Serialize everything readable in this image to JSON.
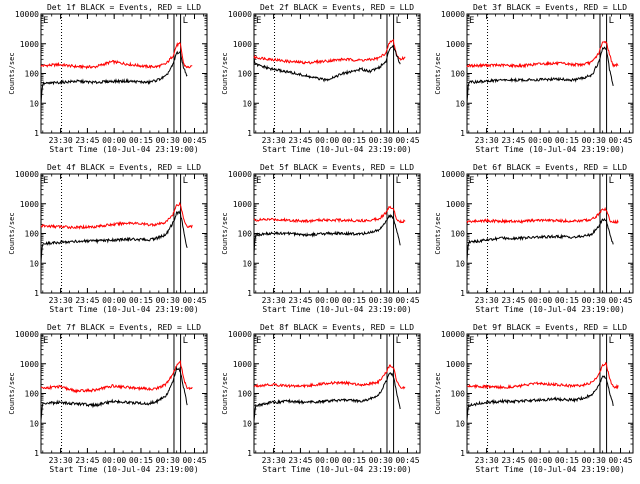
{
  "figure": {
    "xlabel": "Start Time (10-Jul-04 23:19:00)",
    "ylabel": "Counts/sec",
    "x_ticks": [
      "23:30",
      "23:45",
      "00:00",
      "00:15",
      "00:30",
      "00:45"
    ],
    "y_ticks": [
      "1",
      "10",
      "100",
      "1000",
      "10000"
    ],
    "colors": {
      "events": "#000000",
      "lld": "#ff0000",
      "axes": "#000000"
    }
  },
  "chart_data": [
    {
      "type": "line",
      "title": "Det 1f BLACK = Events, RED = LLD",
      "x_unit": "minutes after 23:19",
      "xlim": [
        0,
        93
      ],
      "ylim": [
        1,
        10000
      ],
      "y_scale": "log",
      "dotted_x": [
        11.5
      ],
      "vlines": [
        74.5,
        78.2
      ],
      "corner_marks": [
        "E",
        "L"
      ],
      "series": [
        {
          "color": "#ff0000",
          "x": [
            0,
            10,
            20,
            30,
            40,
            50,
            60,
            65,
            70,
            74,
            76,
            78,
            80,
            82,
            85
          ],
          "y": [
            180,
            200,
            170,
            165,
            250,
            200,
            170,
            170,
            210,
            400,
            900,
            1000,
            200,
            160,
            170
          ]
        },
        {
          "color": "#000000",
          "x": [
            0,
            0.6,
            1,
            10,
            20,
            30,
            40,
            50,
            60,
            65,
            70,
            74,
            76,
            78,
            80,
            82
          ],
          "y": [
            9,
            30,
            45,
            50,
            55,
            50,
            55,
            55,
            50,
            60,
            80,
            200,
            500,
            500,
            150,
            80
          ]
        }
      ]
    },
    {
      "type": "line",
      "title": "Det 2f BLACK = Events, RED = LLD",
      "x_unit": "minutes after 23:19",
      "xlim": [
        0,
        93
      ],
      "ylim": [
        1,
        10000
      ],
      "y_scale": "log",
      "dotted_x": [
        11.5
      ],
      "vlines": [
        74.5,
        78.2
      ],
      "corner_marks": [
        "E",
        "L"
      ],
      "series": [
        {
          "color": "#ff0000",
          "x": [
            0,
            10,
            20,
            30,
            40,
            50,
            60,
            65,
            70,
            74,
            76,
            78,
            80,
            82,
            85
          ],
          "y": [
            350,
            300,
            250,
            230,
            260,
            300,
            280,
            290,
            330,
            500,
            1100,
            1300,
            400,
            300,
            350
          ]
        },
        {
          "color": "#000000",
          "x": [
            0,
            1,
            10,
            20,
            30,
            40,
            50,
            60,
            65,
            70,
            74,
            76,
            78,
            80,
            82
          ],
          "y": [
            300,
            200,
            140,
            110,
            80,
            60,
            100,
            140,
            120,
            160,
            250,
            700,
            900,
            400,
            200
          ]
        }
      ]
    },
    {
      "type": "line",
      "title": "Det 3f BLACK = Events, RED = LLD",
      "x_unit": "minutes after 23:19",
      "xlim": [
        0,
        93
      ],
      "ylim": [
        1,
        10000
      ],
      "y_scale": "log",
      "dotted_x": [
        11.5
      ],
      "vlines": [
        74.5,
        78.2
      ],
      "corner_marks": [
        "E",
        "L"
      ],
      "series": [
        {
          "color": "#ff0000",
          "x": [
            0,
            10,
            20,
            30,
            40,
            50,
            60,
            65,
            70,
            74,
            76,
            78,
            80,
            82,
            85
          ],
          "y": [
            180,
            190,
            190,
            180,
            210,
            220,
            200,
            200,
            240,
            500,
            1100,
            1200,
            400,
            180,
            200
          ]
        },
        {
          "color": "#000000",
          "x": [
            0,
            0.6,
            1,
            10,
            20,
            30,
            40,
            50,
            60,
            65,
            70,
            74,
            76,
            78,
            80,
            82
          ],
          "y": [
            10,
            35,
            50,
            55,
            60,
            60,
            62,
            65,
            60,
            70,
            90,
            250,
            700,
            700,
            120,
            40
          ]
        }
      ]
    },
    {
      "type": "line",
      "title": "Det 4f BLACK = Events, RED = LLD",
      "x_unit": "minutes after 23:19",
      "xlim": [
        0,
        93
      ],
      "ylim": [
        1,
        10000
      ],
      "y_scale": "log",
      "dotted_x": [
        11.5
      ],
      "vlines": [
        74.5,
        78.2
      ],
      "corner_marks": [
        "E",
        "L"
      ],
      "series": [
        {
          "color": "#ff0000",
          "x": [
            0,
            10,
            20,
            30,
            40,
            50,
            60,
            65,
            70,
            74,
            76,
            78,
            80,
            82,
            85
          ],
          "y": [
            180,
            170,
            160,
            170,
            200,
            230,
            200,
            200,
            240,
            450,
            900,
            1000,
            300,
            170,
            180
          ]
        },
        {
          "color": "#000000",
          "x": [
            0,
            0.6,
            1,
            10,
            20,
            30,
            40,
            50,
            60,
            65,
            70,
            74,
            76,
            78,
            80,
            82
          ],
          "y": [
            10,
            35,
            45,
            50,
            55,
            55,
            60,
            65,
            60,
            70,
            90,
            230,
            500,
            500,
            120,
            30
          ]
        }
      ]
    },
    {
      "type": "line",
      "title": "Det 5f BLACK = Events, RED = LLD",
      "x_unit": "minutes after 23:19",
      "xlim": [
        0,
        93
      ],
      "ylim": [
        1,
        10000
      ],
      "y_scale": "log",
      "dotted_x": [
        11.5
      ],
      "vlines": [
        74.5,
        78.2
      ],
      "corner_marks": [
        "E",
        "L"
      ],
      "series": [
        {
          "color": "#ff0000",
          "x": [
            0,
            10,
            20,
            30,
            40,
            50,
            60,
            65,
            70,
            74,
            76,
            78,
            80,
            82,
            85
          ],
          "y": [
            280,
            300,
            280,
            260,
            290,
            280,
            270,
            280,
            320,
            500,
            800,
            700,
            300,
            250,
            260
          ]
        },
        {
          "color": "#000000",
          "x": [
            0,
            0.6,
            1,
            10,
            20,
            30,
            40,
            50,
            60,
            65,
            70,
            74,
            76,
            78,
            80,
            82
          ],
          "y": [
            20,
            70,
            90,
            100,
            100,
            90,
            100,
            100,
            95,
            110,
            130,
            250,
            400,
            350,
            120,
            40
          ]
        }
      ]
    },
    {
      "type": "line",
      "title": "Det 6f BLACK = Events, RED = LLD",
      "x_unit": "minutes after 23:19",
      "xlim": [
        0,
        93
      ],
      "ylim": [
        1,
        10000
      ],
      "y_scale": "log",
      "dotted_x": [
        11.5
      ],
      "vlines": [
        74.5,
        78.2
      ],
      "corner_marks": [
        "E",
        "L"
      ],
      "series": [
        {
          "color": "#ff0000",
          "x": [
            0,
            10,
            20,
            30,
            40,
            50,
            60,
            65,
            70,
            74,
            76,
            78,
            80,
            82,
            85
          ],
          "y": [
            250,
            270,
            260,
            250,
            280,
            270,
            260,
            270,
            300,
            450,
            700,
            600,
            280,
            240,
            250
          ]
        },
        {
          "color": "#000000",
          "x": [
            0,
            0.6,
            1,
            10,
            20,
            30,
            40,
            50,
            60,
            65,
            70,
            74,
            76,
            78,
            80,
            82
          ],
          "y": [
            12,
            40,
            50,
            60,
            70,
            70,
            75,
            80,
            75,
            80,
            95,
            180,
            300,
            280,
            100,
            40
          ]
        }
      ]
    },
    {
      "type": "line",
      "title": "Det 7f BLACK = Events, RED = LLD",
      "x_unit": "minutes after 23:19",
      "xlim": [
        0,
        93
      ],
      "ylim": [
        1,
        10000
      ],
      "y_scale": "log",
      "dotted_x": [
        11.5
      ],
      "vlines": [
        74.5,
        78.2
      ],
      "corner_marks": [
        "E",
        "L"
      ],
      "series": [
        {
          "color": "#ff0000",
          "x": [
            0,
            10,
            20,
            30,
            40,
            50,
            60,
            65,
            70,
            74,
            76,
            78,
            80,
            82,
            85
          ],
          "y": [
            150,
            170,
            120,
            130,
            180,
            160,
            140,
            150,
            200,
            450,
            900,
            1200,
            300,
            150,
            160
          ]
        },
        {
          "color": "#000000",
          "x": [
            0,
            0.6,
            1,
            10,
            20,
            30,
            40,
            50,
            60,
            65,
            70,
            74,
            76,
            78,
            80,
            82
          ],
          "y": [
            12,
            35,
            45,
            50,
            45,
            40,
            55,
            50,
            45,
            55,
            80,
            250,
            700,
            600,
            150,
            40
          ]
        }
      ]
    },
    {
      "type": "line",
      "title": "Det 8f BLACK = Events, RED = LLD",
      "x_unit": "minutes after 23:19",
      "xlim": [
        0,
        93
      ],
      "ylim": [
        1,
        10000
      ],
      "y_scale": "log",
      "dotted_x": [
        11.5
      ],
      "vlines": [
        74.5,
        78.2
      ],
      "corner_marks": [
        "E",
        "L"
      ],
      "series": [
        {
          "color": "#ff0000",
          "x": [
            0,
            10,
            20,
            30,
            40,
            50,
            60,
            65,
            70,
            74,
            76,
            78,
            80,
            82,
            85
          ],
          "y": [
            180,
            200,
            180,
            180,
            220,
            230,
            200,
            210,
            250,
            500,
            900,
            800,
            250,
            150,
            160
          ]
        },
        {
          "color": "#000000",
          "x": [
            0,
            0.6,
            1,
            10,
            20,
            30,
            40,
            50,
            60,
            65,
            70,
            74,
            76,
            78,
            80,
            82
          ],
          "y": [
            12,
            30,
            40,
            50,
            55,
            50,
            55,
            60,
            55,
            65,
            90,
            250,
            500,
            400,
            100,
            30
          ]
        }
      ]
    },
    {
      "type": "line",
      "title": "Det 9f BLACK = Events, RED = LLD",
      "x_unit": "minutes after 23:19",
      "xlim": [
        0,
        93
      ],
      "ylim": [
        1,
        10000
      ],
      "y_scale": "log",
      "dotted_x": [
        11.5
      ],
      "vlines": [
        74.5,
        78.2
      ],
      "corner_marks": [
        "E",
        "L"
      ],
      "series": [
        {
          "color": "#ff0000",
          "x": [
            0,
            10,
            20,
            30,
            40,
            50,
            60,
            65,
            70,
            74,
            76,
            78,
            80,
            82,
            85
          ],
          "y": [
            180,
            170,
            160,
            180,
            220,
            200,
            180,
            190,
            230,
            450,
            900,
            1000,
            300,
            160,
            170
          ]
        },
        {
          "color": "#000000",
          "x": [
            0,
            0.6,
            1,
            10,
            20,
            30,
            40,
            50,
            60,
            65,
            70,
            74,
            76,
            78,
            80,
            82
          ],
          "y": [
            12,
            30,
            40,
            50,
            55,
            55,
            60,
            65,
            60,
            70,
            90,
            200,
            400,
            350,
            100,
            40
          ]
        }
      ]
    }
  ]
}
